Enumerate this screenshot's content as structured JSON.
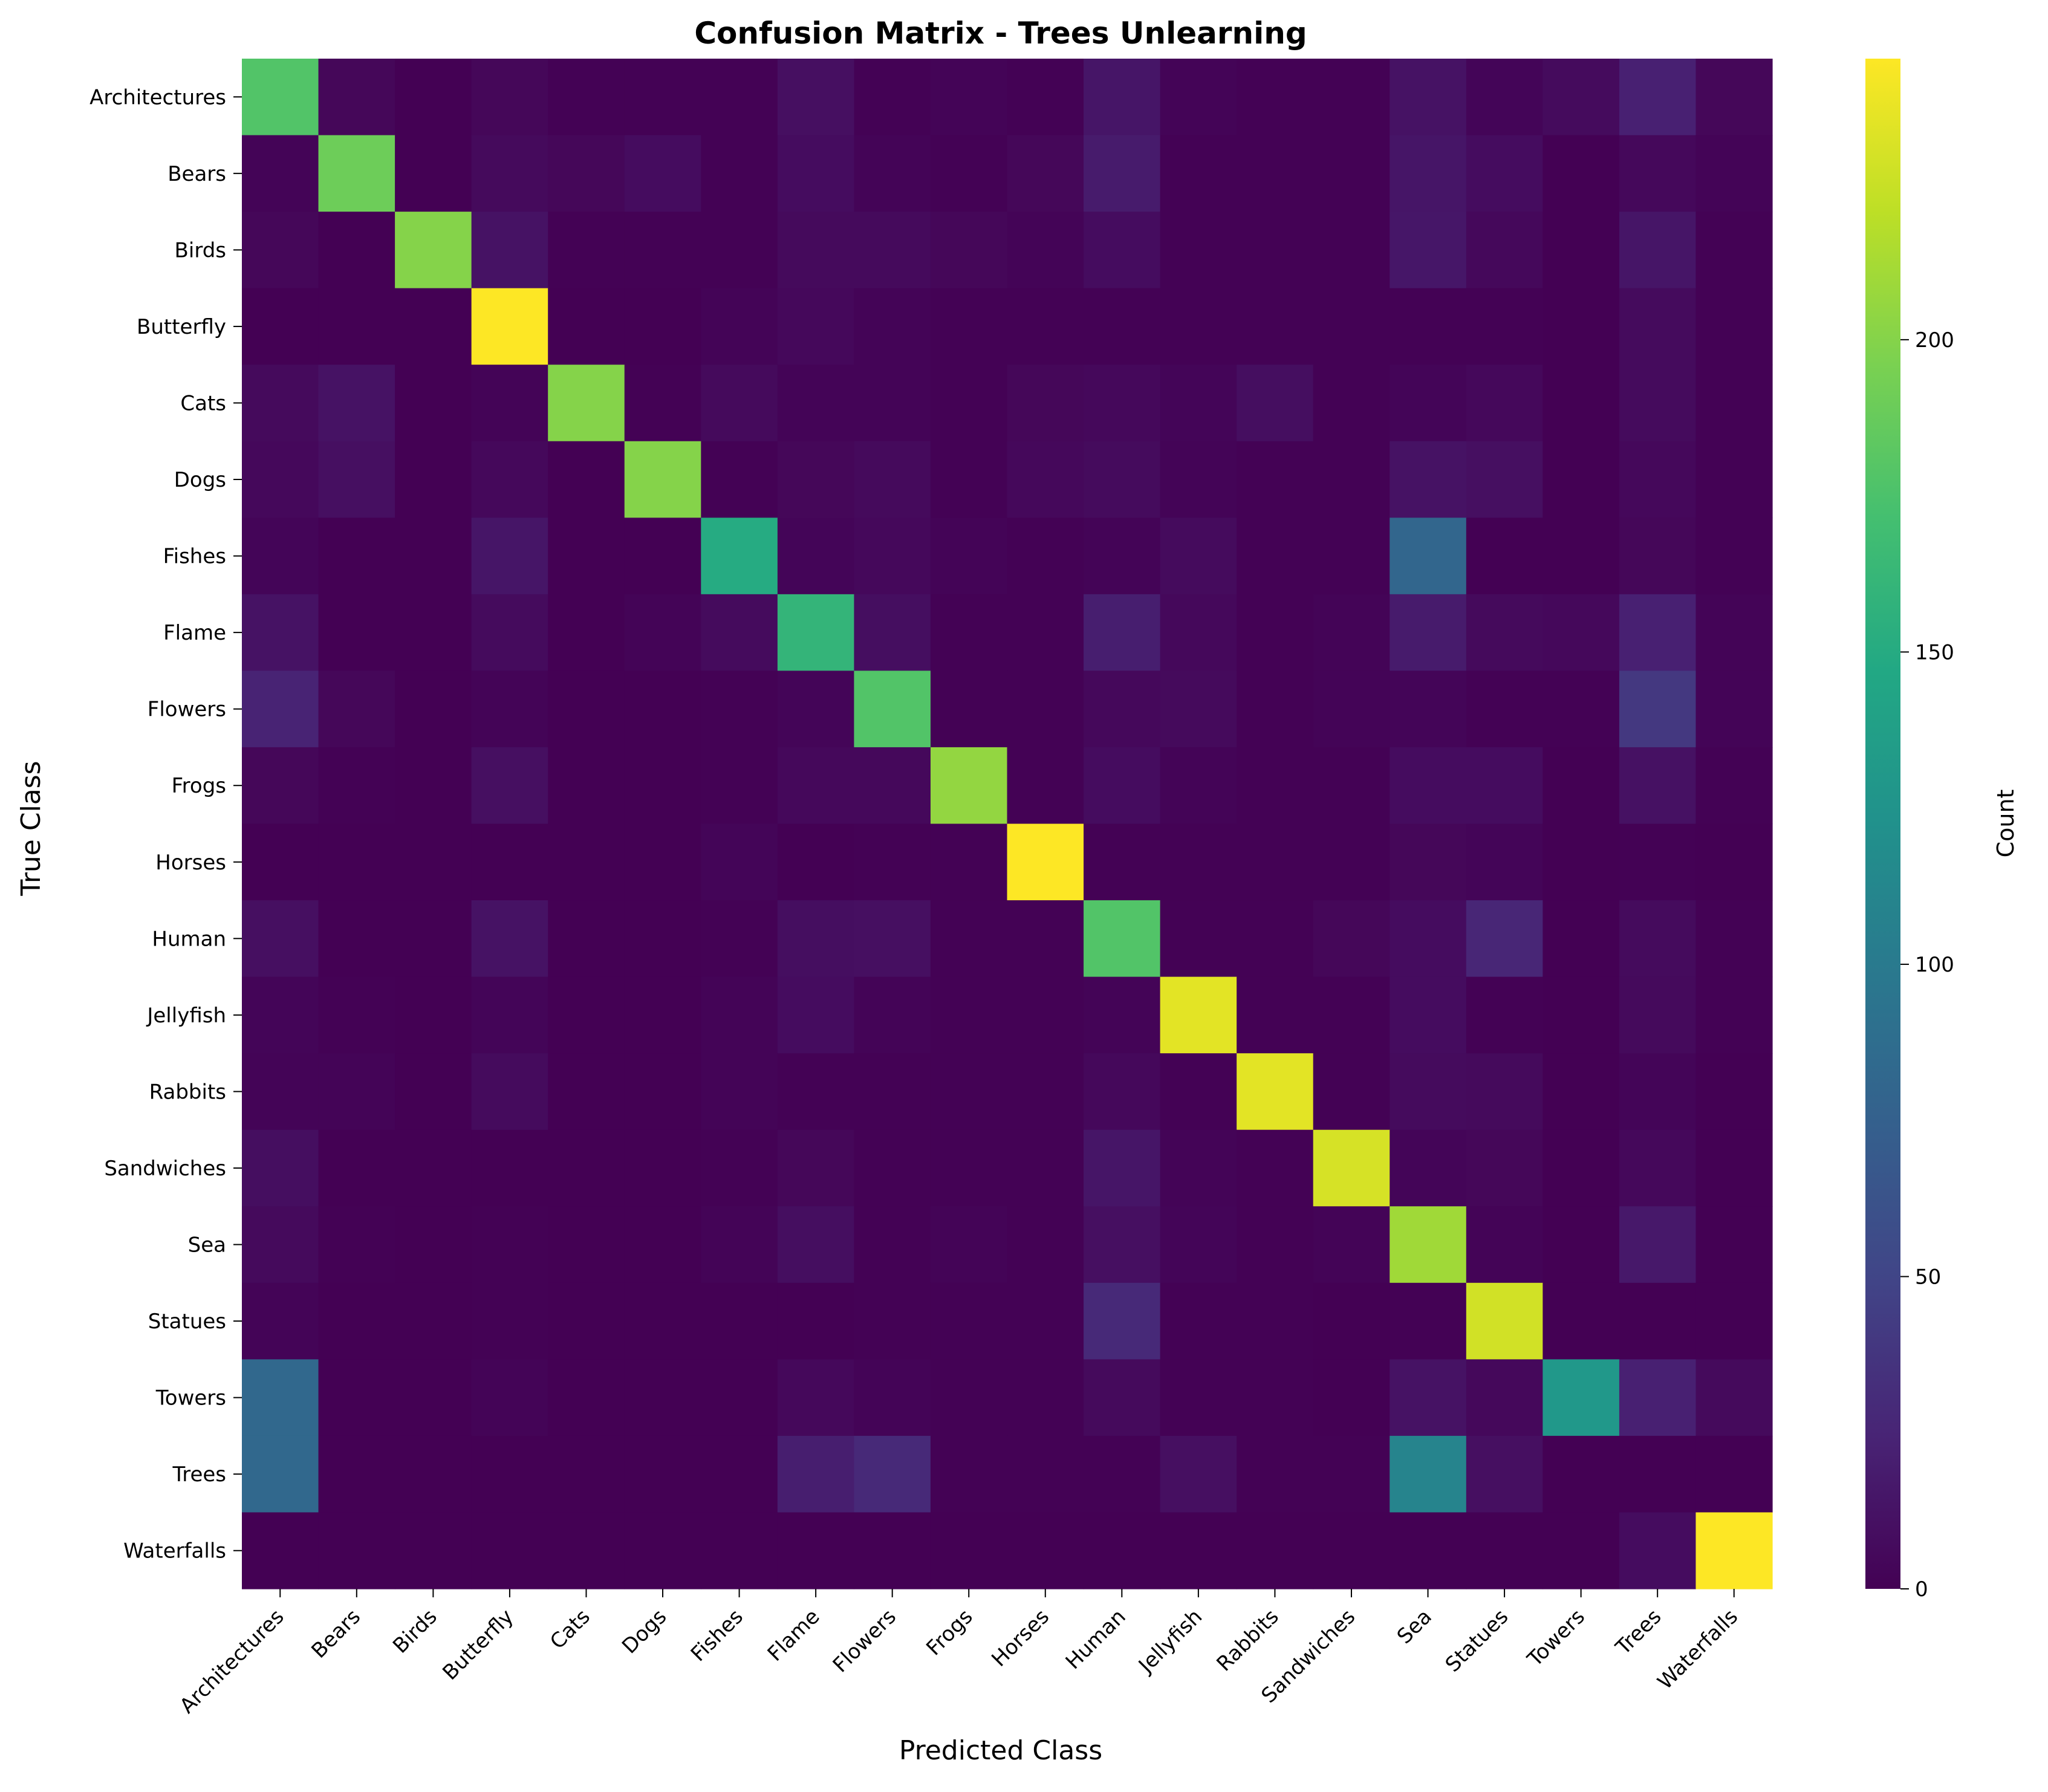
{
  "chart_data": {
    "type": "heatmap",
    "title": "Confusion Matrix - Trees Unlearning",
    "xlabel": "Predicted Class",
    "ylabel": "True Class",
    "colorbar_label": "Count",
    "colormap": "viridis",
    "vmin": 0,
    "vmax": 245,
    "colorbar_ticks": [
      0,
      50,
      100,
      150,
      200
    ],
    "grid": false,
    "labels": [
      "Architectures",
      "Bears",
      "Birds",
      "Butterfly",
      "Cats",
      "Dogs",
      "Fishes",
      "Flame",
      "Flowers",
      "Frogs",
      "Horses",
      "Human",
      "Jellyfish",
      "Rabbits",
      "Sandwiches",
      "Sea",
      "Statues",
      "Towers",
      "Trees",
      "Waterfalls"
    ],
    "matrix": [
      [
        178,
        4,
        0,
        4,
        1,
        1,
        1,
        10,
        1,
        2,
        1,
        14,
        2,
        1,
        1,
        12,
        3,
        7,
        22,
        4
      ],
      [
        2,
        190,
        0,
        6,
        4,
        8,
        1,
        8,
        2,
        1,
        4,
        18,
        1,
        1,
        1,
        14,
        8,
        0,
        5,
        2
      ],
      [
        4,
        0,
        200,
        12,
        1,
        1,
        1,
        6,
        6,
        4,
        2,
        8,
        1,
        1,
        1,
        15,
        5,
        0,
        14,
        1
      ],
      [
        0,
        0,
        0,
        245,
        0,
        0,
        2,
        5,
        2,
        1,
        1,
        1,
        1,
        1,
        1,
        1,
        1,
        0,
        7,
        1
      ],
      [
        6,
        12,
        0,
        2,
        200,
        1,
        6,
        2,
        2,
        1,
        4,
        5,
        3,
        9,
        1,
        3,
        5,
        0,
        7,
        1
      ],
      [
        5,
        10,
        0,
        5,
        0,
        200,
        1,
        4,
        6,
        1,
        5,
        7,
        2,
        1,
        1,
        12,
        10,
        0,
        5,
        1
      ],
      [
        3,
        0,
        0,
        14,
        0,
        0,
        150,
        3,
        5,
        2,
        1,
        2,
        7,
        1,
        1,
        80,
        0,
        0,
        4,
        1
      ],
      [
        12,
        0,
        0,
        7,
        0,
        2,
        7,
        160,
        9,
        1,
        1,
        20,
        5,
        1,
        2,
        18,
        6,
        5,
        22,
        2
      ],
      [
        24,
        4,
        0,
        2,
        0,
        0,
        1,
        3,
        178,
        1,
        1,
        5,
        6,
        1,
        2,
        3,
        1,
        1,
        40,
        2
      ],
      [
        4,
        1,
        0,
        10,
        0,
        0,
        1,
        5,
        5,
        205,
        1,
        8,
        2,
        1,
        1,
        8,
        8,
        0,
        11,
        1
      ],
      [
        0,
        0,
        0,
        0,
        0,
        0,
        3,
        0,
        1,
        1,
        245,
        1,
        1,
        1,
        1,
        4,
        3,
        0,
        1,
        0
      ],
      [
        10,
        0,
        0,
        12,
        0,
        0,
        1,
        9,
        10,
        1,
        1,
        178,
        1,
        1,
        4,
        8,
        26,
        0,
        7,
        1
      ],
      [
        3,
        1,
        0,
        3,
        0,
        0,
        2,
        8,
        2,
        1,
        1,
        2,
        235,
        1,
        1,
        8,
        1,
        0,
        6,
        1
      ],
      [
        2,
        2,
        0,
        7,
        0,
        0,
        2,
        1,
        1,
        1,
        1,
        5,
        1,
        235,
        1,
        7,
        6,
        0,
        3,
        0
      ],
      [
        9,
        0,
        0,
        0,
        0,
        0,
        1,
        4,
        1,
        1,
        1,
        14,
        2,
        1,
        230,
        3,
        4,
        0,
        5,
        0
      ],
      [
        6,
        1,
        0,
        1,
        0,
        0,
        2,
        9,
        1,
        2,
        1,
        10,
        3,
        1,
        2,
        210,
        2,
        0,
        16,
        0
      ],
      [
        2,
        0,
        0,
        1,
        0,
        0,
        0,
        0,
        1,
        1,
        1,
        28,
        1,
        1,
        0,
        1,
        228,
        0,
        0,
        0
      ],
      [
        82,
        0,
        0,
        2,
        0,
        0,
        0,
        5,
        2,
        1,
        1,
        6,
        1,
        1,
        0,
        12,
        5,
        130,
        22,
        6
      ],
      [
        82,
        0,
        0,
        0,
        0,
        0,
        0,
        20,
        28,
        1,
        1,
        1,
        10,
        1,
        1,
        110,
        10,
        0,
        0,
        0
      ],
      [
        0,
        0,
        0,
        0,
        0,
        0,
        0,
        0,
        0,
        0,
        0,
        0,
        0,
        0,
        0,
        0,
        0,
        0,
        8,
        245
      ]
    ]
  }
}
